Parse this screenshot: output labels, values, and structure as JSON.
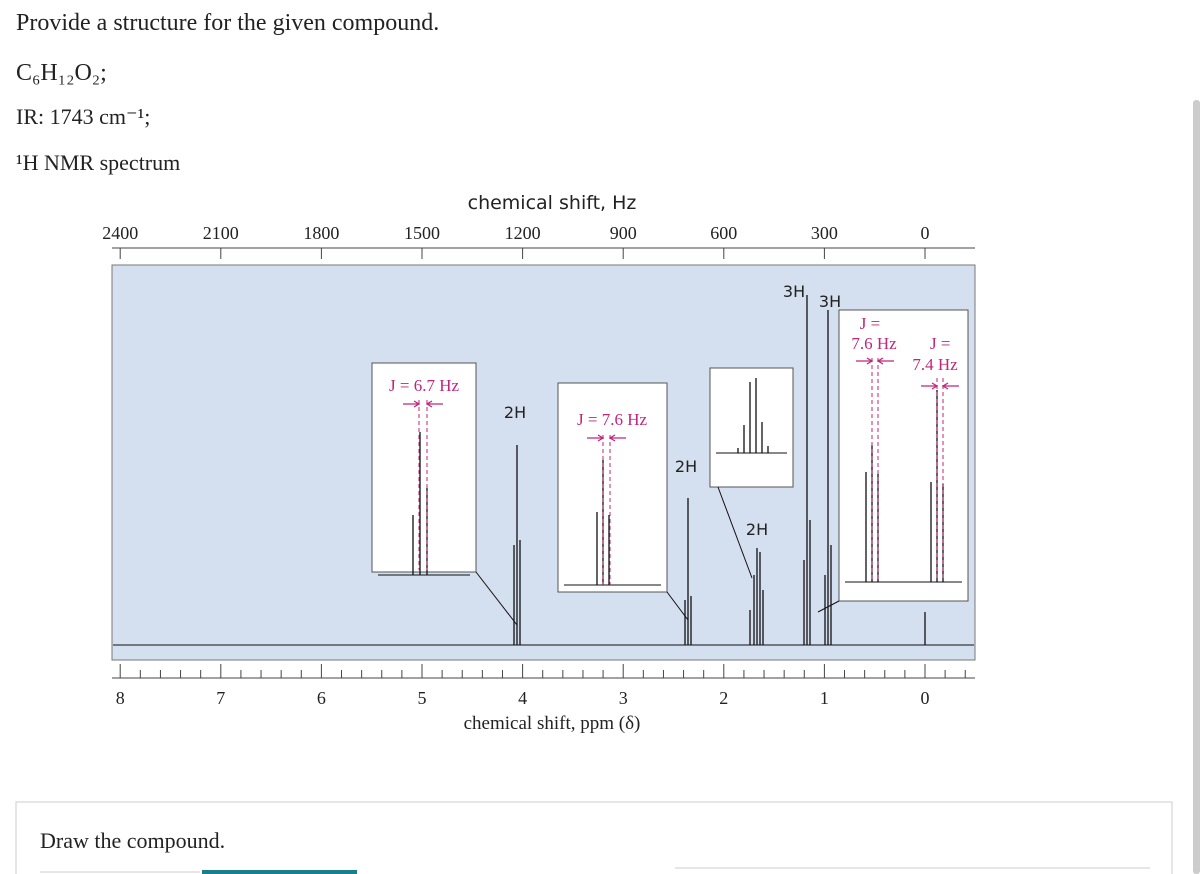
{
  "question": {
    "prompt": "Provide a structure for the given compound.",
    "formula": "C₆H₁₂O₂;",
    "ir": "IR: 1743 cm⁻¹;",
    "nmr_label": "¹H NMR spectrum"
  },
  "spectrum": {
    "top_axis_title": "chemical shift, Hz",
    "top_ticks": [
      2400,
      2100,
      1800,
      1500,
      1200,
      900,
      600,
      300,
      0
    ],
    "bottom_axis_title": "chemical shift, ppm (δ)",
    "bottom_ticks": [
      8,
      7,
      6,
      5,
      4,
      3,
      2,
      1,
      0
    ],
    "integrations": [
      "2H",
      "2H",
      "2H",
      "3H",
      "3H"
    ],
    "coupling": [
      "J = 6.7 Hz",
      "J = 7.6 Hz",
      "J =",
      "7.6 Hz",
      "J =",
      "7.4 Hz"
    ]
  },
  "answer": {
    "instruction": "Draw the compound."
  }
}
